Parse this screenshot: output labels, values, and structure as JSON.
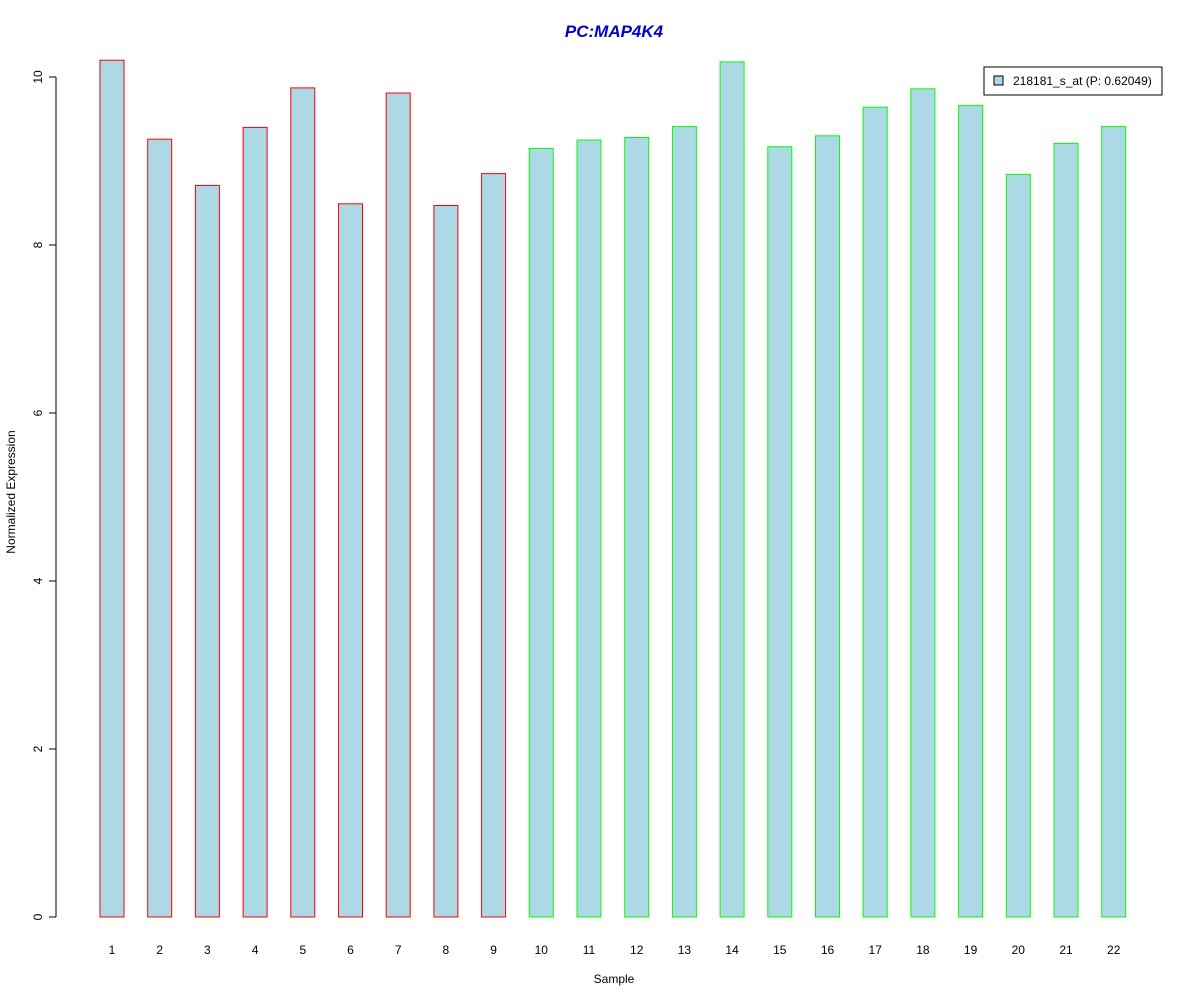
{
  "chart_data": {
    "type": "bar",
    "title": "PC:MAP4K4",
    "title_color": "#0000cc",
    "xlabel": "Sample",
    "ylabel": "Normalized Expression",
    "ylim": [
      0,
      10.3
    ],
    "yticks": [
      0,
      2,
      4,
      6,
      8,
      10
    ],
    "categories": [
      "1",
      "2",
      "3",
      "4",
      "5",
      "6",
      "7",
      "8",
      "9",
      "10",
      "11",
      "12",
      "13",
      "14",
      "15",
      "16",
      "17",
      "18",
      "19",
      "20",
      "21",
      "22"
    ],
    "values": [
      10.2,
      9.26,
      8.71,
      9.4,
      9.87,
      8.49,
      9.81,
      8.47,
      8.85,
      9.15,
      9.25,
      9.28,
      9.41,
      10.18,
      9.17,
      9.3,
      9.64,
      9.86,
      9.66,
      8.84,
      9.21,
      9.41
    ],
    "fill_color": "#add8e6",
    "group_colors": {
      "group1": "#ff0000",
      "group2": "#00ff00"
    },
    "groups": [
      "group1",
      "group1",
      "group1",
      "group1",
      "group1",
      "group1",
      "group1",
      "group1",
      "group1",
      "group2",
      "group2",
      "group2",
      "group2",
      "group2",
      "group2",
      "group2",
      "group2",
      "group2",
      "group2",
      "group2",
      "group2",
      "group2"
    ],
    "legend": {
      "label": "218181_s_at (P: 0.62049)",
      "position": "top-right"
    },
    "grid": false
  }
}
